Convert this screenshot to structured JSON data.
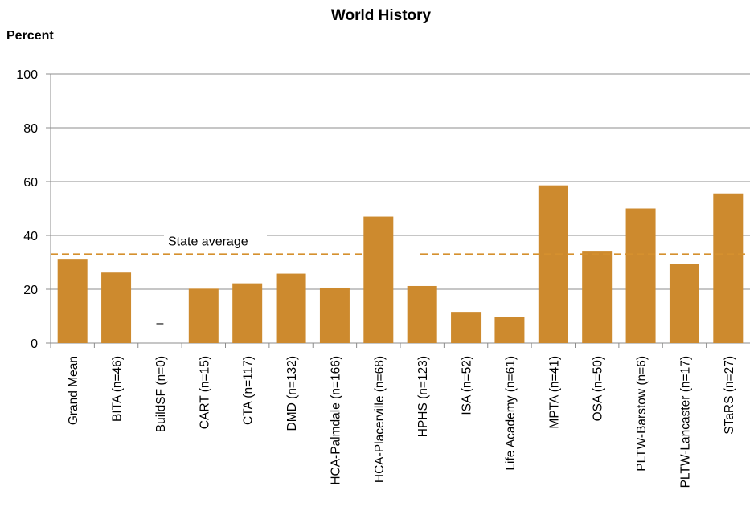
{
  "chart_data": {
    "type": "bar",
    "title": "World History",
    "ylabel": "Percent",
    "xlabel": "",
    "ylim": [
      0,
      100
    ],
    "yticks": [
      0,
      20,
      40,
      60,
      80,
      100
    ],
    "grid": true,
    "categories": [
      "Grand Mean",
      "BITA (n=46)",
      "BuildSF (n=0)",
      "CART (n=15)",
      "CTA (n=117)",
      "DMD (n=132)",
      "HCA-Palmdale (n=166)",
      "HCA-Placerville (n=68)",
      "HPHS (n=123)",
      "ISA (n=52)",
      "Life Academy (n=61)",
      "MPTA (n=41)",
      "OSA (n=50)",
      "PLTW-Barstow (n=6)",
      "PLTW-Lancaster (n=17)",
      "STaRS (n=27)"
    ],
    "values": [
      31,
      26.2,
      null,
      20.2,
      22.2,
      25.8,
      20.6,
      47,
      21.2,
      11.6,
      9.8,
      58.6,
      34,
      50,
      29.4,
      55.6
    ],
    "missing_marker": "–",
    "reference_line": {
      "label": "State average",
      "value": 33
    },
    "colors": {
      "bar": "#CD8A2E",
      "reference_line": "#D5902E",
      "grid": "#8C8C8C",
      "axis": "#8C8C8C",
      "text": "#000000"
    }
  }
}
